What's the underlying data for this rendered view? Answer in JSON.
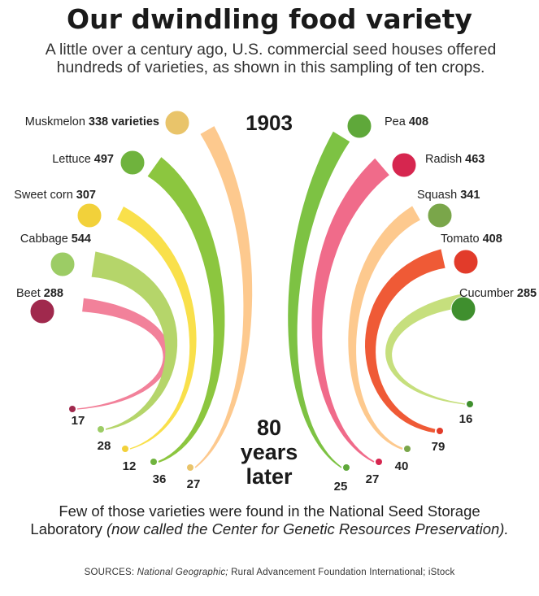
{
  "title": "Our dwindling food variety",
  "subtitle": "A little over a century ago, U.S. commercial seed houses offered hundreds of varieties, as shown in this sampling of ten crops.",
  "top_year_label": "1903",
  "later_label": [
    "80",
    "years",
    "later"
  ],
  "footer_text": "Few of those varieties were found in the National Seed Storage Laboratory",
  "footer_italic": "(now called the Center for Genetic Resources Preservation).",
  "sources_prefix": "SOURCES:",
  "sources_italic": "National Geographic;",
  "sources_rest": "Rural Advancement Foundation International; iStock",
  "chart_data": {
    "type": "bar",
    "categories": [
      "Muskmelon",
      "Lettuce",
      "Sweet corn",
      "Cabbage",
      "Beet",
      "Pea",
      "Radish",
      "Squash",
      "Tomato",
      "Cucumber"
    ],
    "series": [
      {
        "name": "1903",
        "values": [
          338,
          497,
          307,
          544,
          288,
          408,
          463,
          341,
          408,
          285
        ]
      },
      {
        "name": "80 years later",
        "values": [
          27,
          36,
          12,
          28,
          17,
          25,
          27,
          40,
          79,
          16
        ]
      }
    ],
    "labels_1903": [
      "Muskmelon 338 varieties",
      "Lettuce 497",
      "Sweet corn 307",
      "Cabbage 544",
      "Beet 288",
      "Pea 408",
      "Radish 463",
      "Squash 341",
      "Tomato 408",
      "Cucumber 285"
    ],
    "colors": [
      "#fdc98e",
      "#8cc63f",
      "#f9e04b",
      "#b5d56a",
      "#f2819a",
      "#7dc243",
      "#f06b8a",
      "#fdc98e",
      "#ef5a36",
      "#c6df7d"
    ],
    "icons": [
      "muskmelon-icon",
      "lettuce-icon",
      "sweet-corn-icon",
      "cabbage-icon",
      "beet-icon",
      "pea-icon",
      "radish-icon",
      "squash-icon",
      "tomato-icon",
      "cucumber-icon"
    ],
    "icon_colors": [
      "#e9c46a",
      "#6fb33d",
      "#f2d13a",
      "#9ccc65",
      "#a0294d",
      "#5fa83a",
      "#d6264f",
      "#7aa64a",
      "#e23b2a",
      "#3f8f2e"
    ]
  }
}
